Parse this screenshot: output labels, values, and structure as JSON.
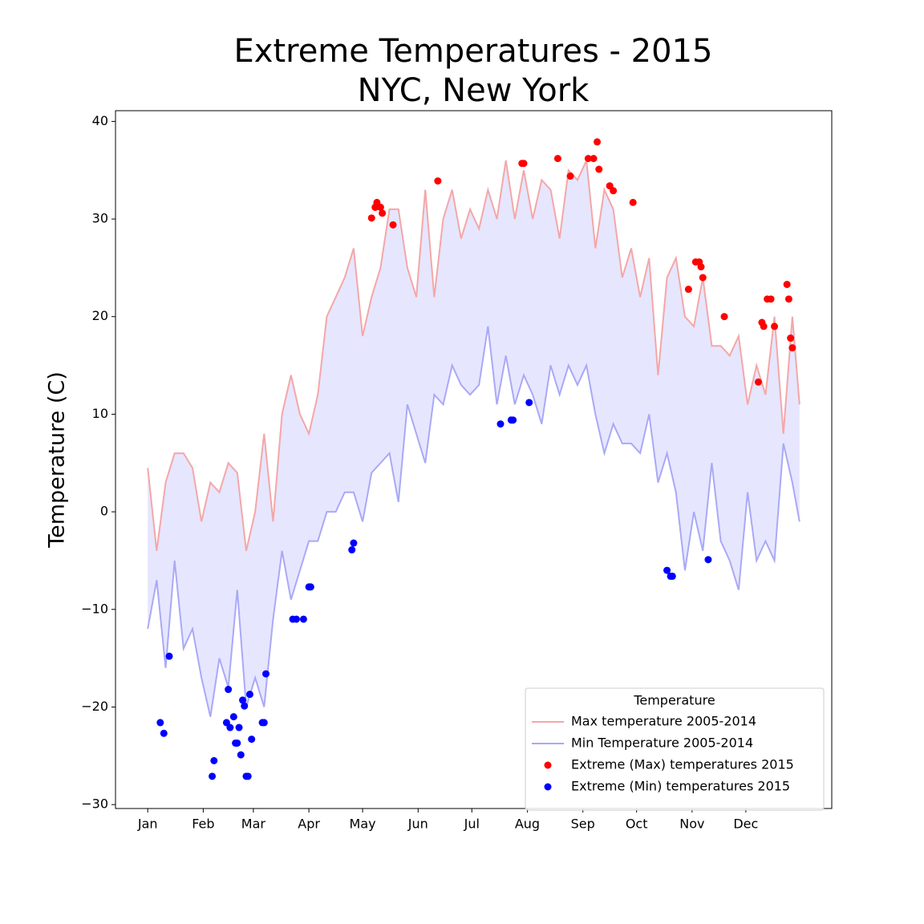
{
  "chart_data": {
    "type": "line",
    "title": [
      "Extreme Temperatures - 2015",
      "NYC, New York"
    ],
    "ylabel": "Temperature (C)",
    "legend_title": "Temperature",
    "legend": "lower right",
    "fill_between": {
      "series": [
        0,
        1
      ],
      "color": "#e6e6ff"
    },
    "xlim": [
      -18,
      382
    ],
    "ylim": [
      -30.4,
      41.1
    ],
    "xticks": [
      {
        "value": 0,
        "label": "Jan"
      },
      {
        "value": 31,
        "label": "Feb"
      },
      {
        "value": 59,
        "label": "Mar"
      },
      {
        "value": 90,
        "label": "Apr"
      },
      {
        "value": 120,
        "label": "May"
      },
      {
        "value": 151,
        "label": "Jun"
      },
      {
        "value": 181,
        "label": "Jul"
      },
      {
        "value": 212,
        "label": "Aug"
      },
      {
        "value": 243,
        "label": "Sep"
      },
      {
        "value": 273,
        "label": "Oct"
      },
      {
        "value": 304,
        "label": "Nov"
      },
      {
        "value": 334,
        "label": "Dec"
      }
    ],
    "yticks": [
      {
        "value": -30,
        "label": "−30"
      },
      {
        "value": -20,
        "label": "−20"
      },
      {
        "value": -10,
        "label": "−10"
      },
      0,
      10,
      20,
      30,
      40
    ],
    "series": [
      {
        "name": "Max temperature 2005-2014",
        "type": "line",
        "color": "#f4a7a7",
        "x": [
          0,
          5,
          10,
          15,
          20,
          25,
          30,
          35,
          40,
          45,
          50,
          55,
          60,
          65,
          70,
          75,
          80,
          85,
          90,
          95,
          100,
          105,
          110,
          115,
          120,
          125,
          130,
          135,
          140,
          145,
          150,
          155,
          160,
          165,
          170,
          175,
          180,
          185,
          190,
          195,
          200,
          205,
          210,
          215,
          220,
          225,
          230,
          235,
          240,
          245,
          250,
          255,
          260,
          265,
          270,
          275,
          280,
          285,
          290,
          295,
          300,
          305,
          310,
          315,
          320,
          325,
          330,
          335,
          340,
          345,
          350,
          355,
          360,
          364
        ],
        "values": [
          4.5,
          -4,
          3,
          6,
          6,
          4.5,
          -1,
          3,
          2,
          5,
          4,
          -4,
          0,
          8,
          -1,
          10,
          14,
          10,
          8,
          12,
          20,
          22,
          24,
          27,
          18,
          22,
          25,
          31,
          31,
          25,
          22,
          33,
          22,
          30,
          33,
          28,
          31,
          29,
          33,
          30,
          36,
          30,
          35,
          30,
          34,
          33,
          28,
          35,
          34,
          36,
          27,
          33,
          31,
          24,
          27,
          22,
          26,
          14,
          24,
          26,
          20,
          19,
          24,
          17,
          17,
          16,
          18,
          11,
          15,
          12,
          20,
          8,
          20,
          11
        ]
      },
      {
        "name": "Min Temperature 2005-2014",
        "type": "line",
        "color": "#a9a9f7",
        "x": [
          0,
          5,
          10,
          15,
          20,
          25,
          30,
          35,
          40,
          45,
          50,
          55,
          60,
          65,
          70,
          75,
          80,
          85,
          90,
          95,
          100,
          105,
          110,
          115,
          120,
          125,
          130,
          135,
          140,
          145,
          150,
          155,
          160,
          165,
          170,
          175,
          180,
          185,
          190,
          195,
          200,
          205,
          210,
          215,
          220,
          225,
          230,
          235,
          240,
          245,
          250,
          255,
          260,
          265,
          270,
          275,
          280,
          285,
          290,
          295,
          300,
          305,
          310,
          315,
          320,
          325,
          330,
          335,
          340,
          345,
          350,
          355,
          360,
          364
        ],
        "values": [
          -12,
          -7,
          -16,
          -5,
          -14,
          -12,
          -17,
          -21,
          -15,
          -18,
          -8,
          -20,
          -17,
          -20,
          -11,
          -4,
          -9,
          -6,
          -3,
          -3,
          0,
          0,
          2,
          2,
          -1,
          4,
          5,
          6,
          1,
          11,
          8,
          5,
          12,
          11,
          15,
          13,
          12,
          13,
          19,
          11,
          16,
          11,
          14,
          12,
          9,
          15,
          12,
          15,
          13,
          15,
          10,
          6,
          9,
          7,
          7,
          6,
          10,
          3,
          6,
          2,
          -6,
          0,
          -4,
          5,
          -3,
          -5,
          -8,
          2,
          -5,
          -3,
          -5,
          7,
          3,
          -1
        ]
      },
      {
        "name": "Extreme (Max) temperatures 2015",
        "type": "scatter",
        "color": "red",
        "x": [
          125,
          127,
          128,
          130,
          131,
          137,
          162,
          209,
          210,
          229,
          236,
          246,
          249,
          251,
          252,
          258,
          260,
          271,
          302,
          306,
          308,
          309,
          310,
          322,
          341,
          343,
          344,
          346,
          348,
          350,
          357,
          358,
          359,
          360
        ],
        "values": [
          30.1,
          31.2,
          31.7,
          31.2,
          30.6,
          29.4,
          33.9,
          35.7,
          35.7,
          36.2,
          34.4,
          36.2,
          36.2,
          37.9,
          35.1,
          33.4,
          32.9,
          31.7,
          22.8,
          25.6,
          25.6,
          25.1,
          24.0,
          20.0,
          13.3,
          19.4,
          19.0,
          21.8,
          21.8,
          19.0,
          23.3,
          21.8,
          17.8,
          16.8
        ]
      },
      {
        "name": "Extreme (Min) temperatures 2015",
        "type": "scatter",
        "color": "blue",
        "x": [
          7,
          9,
          12,
          36,
          37,
          44,
          45,
          46,
          48,
          49,
          50,
          51,
          52,
          53,
          54,
          55,
          56,
          57,
          58,
          64,
          65,
          66,
          81,
          83,
          87,
          90,
          91,
          114,
          115,
          197,
          203,
          204,
          213,
          290,
          292,
          293,
          313
        ],
        "values": [
          -21.6,
          -22.7,
          -14.8,
          -27.1,
          -25.5,
          -21.6,
          -18.2,
          -22.1,
          -21.0,
          -23.7,
          -23.7,
          -22.1,
          -24.9,
          -19.3,
          -19.9,
          -27.1,
          -27.1,
          -18.7,
          -23.3,
          -21.6,
          -21.6,
          -16.6,
          -11.0,
          -11.0,
          -11.0,
          -7.7,
          -7.7,
          -3.9,
          -3.2,
          9.0,
          9.4,
          9.4,
          11.2,
          -6.0,
          -6.6,
          -6.6,
          -4.9
        ]
      }
    ]
  }
}
